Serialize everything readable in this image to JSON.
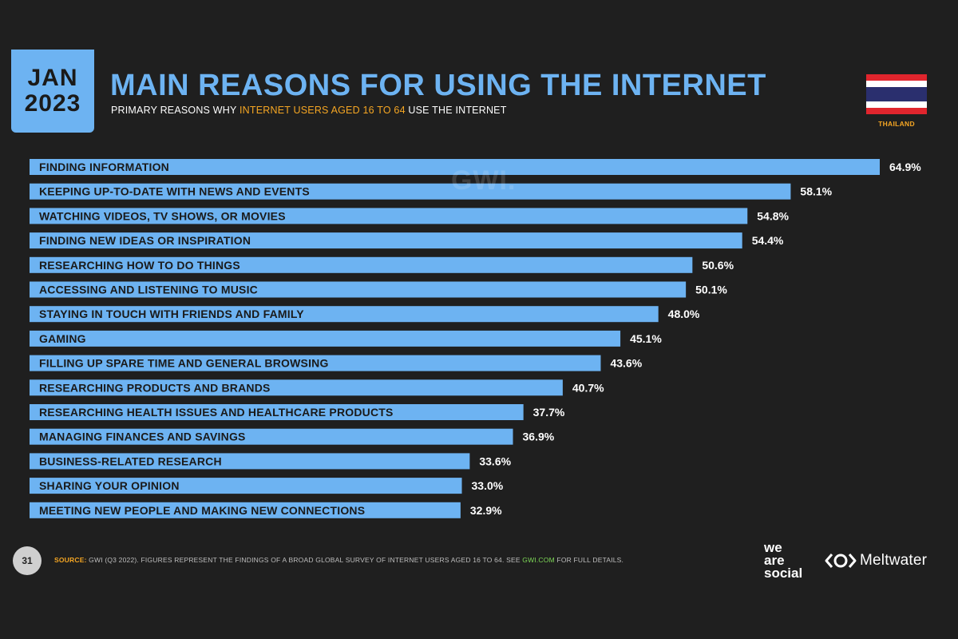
{
  "header": {
    "month": "JAN",
    "year": "2023",
    "title": "MAIN REASONS FOR USING THE INTERNET",
    "subtitle_before": "PRIMARY REASONS WHY ",
    "subtitle_highlight": "INTERNET USERS AGED 16 TO 64",
    "subtitle_after": " USE THE INTERNET",
    "country": "THAILAND"
  },
  "watermark": "GWI.",
  "colors": {
    "accent": "#6db3f2",
    "highlight": "#f5a623",
    "background": "#1f1f1f",
    "link": "#7ed957"
  },
  "chart_data": {
    "type": "bar",
    "orientation": "horizontal",
    "categories": [
      "FINDING INFORMATION",
      "KEEPING UP-TO-DATE WITH NEWS AND EVENTS",
      "WATCHING VIDEOS, TV SHOWS, OR MOVIES",
      "FINDING NEW IDEAS OR INSPIRATION",
      "RESEARCHING HOW TO DO THINGS",
      "ACCESSING AND LISTENING TO MUSIC",
      "STAYING IN TOUCH WITH FRIENDS AND FAMILY",
      "GAMING",
      "FILLING UP SPARE TIME AND GENERAL BROWSING",
      "RESEARCHING PRODUCTS AND BRANDS",
      "RESEARCHING HEALTH ISSUES AND HEALTHCARE PRODUCTS",
      "MANAGING FINANCES AND SAVINGS",
      "BUSINESS-RELATED RESEARCH",
      "SHARING YOUR OPINION",
      "MEETING NEW PEOPLE AND MAKING NEW CONNECTIONS"
    ],
    "values": [
      64.9,
      58.1,
      54.8,
      54.4,
      50.6,
      50.1,
      48.0,
      45.1,
      43.6,
      40.7,
      37.7,
      36.9,
      33.6,
      33.0,
      32.9
    ],
    "value_labels": [
      "64.9%",
      "58.1%",
      "54.8%",
      "54.4%",
      "50.6%",
      "50.1%",
      "48.0%",
      "45.1%",
      "43.6%",
      "40.7%",
      "37.7%",
      "36.9%",
      "33.6%",
      "33.0%",
      "32.9%"
    ],
    "xlim": [
      0,
      64.9
    ],
    "grid": false
  },
  "footer": {
    "page_number": "31",
    "source_label": "SOURCE:",
    "source_text": " GWI (Q3 2022). FIGURES REPRESENT THE FINDINGS OF A BROAD GLOBAL SURVEY OF INTERNET USERS AGED 16 TO 64. SEE ",
    "source_link": "GWI.COM",
    "source_after": " FOR FULL DETAILS.",
    "logo_line1": "we",
    "logo_line2": "are",
    "logo_line3": "social",
    "meltwater": "Meltwater"
  }
}
